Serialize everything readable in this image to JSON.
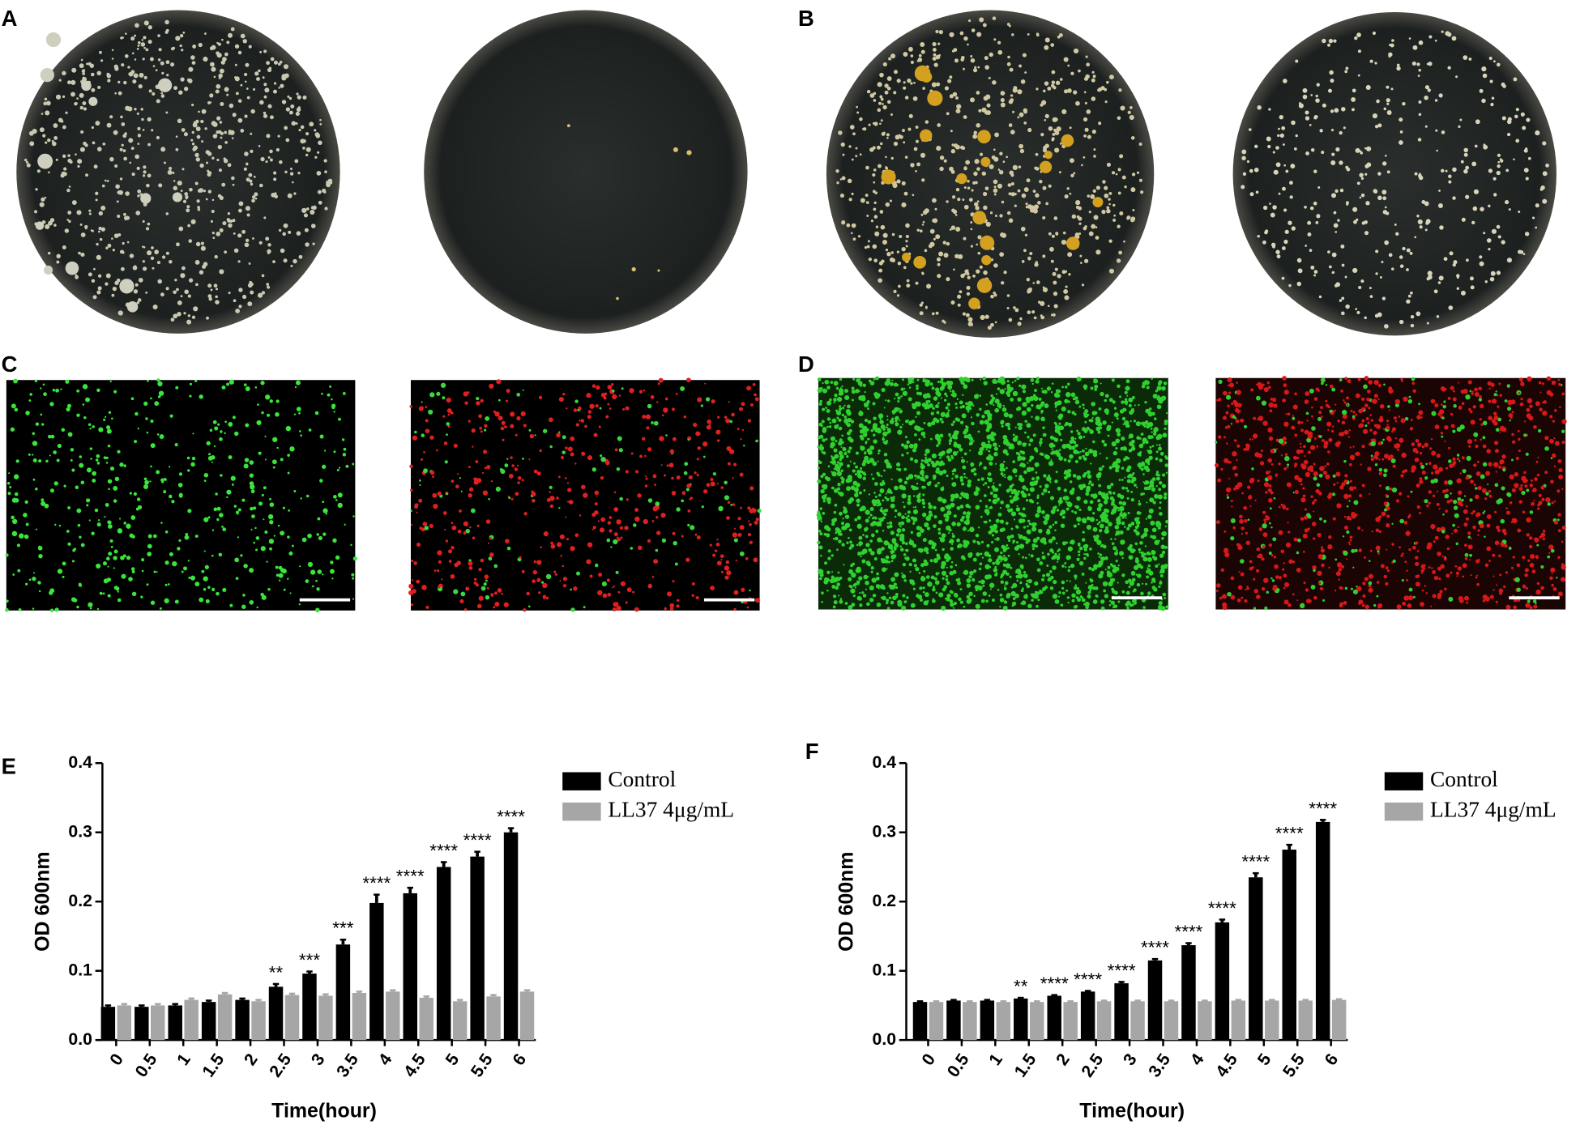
{
  "photo_panels": [
    "A",
    "B",
    "C",
    "D"
  ],
  "chart_data": [
    {
      "type": "bar",
      "panel": "E",
      "x_label": "Time(hour)",
      "y_label": "OD 600nm",
      "categories": [
        "0",
        "0.5",
        "1",
        "1.5",
        "2",
        "2.5",
        "3",
        "3.5",
        "4",
        "4.5",
        "5",
        "5.5",
        "6"
      ],
      "series": [
        {
          "name": "Control",
          "color": "#000000",
          "values": [
            0.048,
            0.048,
            0.05,
            0.055,
            0.058,
            0.077,
            0.096,
            0.138,
            0.198,
            0.212,
            0.25,
            0.265,
            0.3
          ],
          "errors": [
            0.002,
            0.002,
            0.002,
            0.002,
            0.002,
            0.004,
            0.003,
            0.007,
            0.012,
            0.008,
            0.007,
            0.007,
            0.006
          ]
        },
        {
          "name": "LL37 4μg/mL",
          "color": "#a6a6a6",
          "values": [
            0.05,
            0.05,
            0.058,
            0.066,
            0.056,
            0.065,
            0.064,
            0.068,
            0.07,
            0.061,
            0.056,
            0.063,
            0.07
          ],
          "errors": [
            0.002,
            0.002,
            0.002,
            0.002,
            0.002,
            0.002,
            0.002,
            0.002,
            0.002,
            0.002,
            0.002,
            0.002,
            0.002
          ]
        }
      ],
      "annotations": [
        null,
        null,
        null,
        null,
        null,
        "**",
        "***",
        "***",
        "****",
        "****",
        "****",
        "****",
        "****"
      ],
      "ylim": [
        0,
        0.4
      ],
      "yticks": [
        {
          "value": 0,
          "label": "0.0"
        },
        0.1,
        0.2,
        0.3,
        0.4
      ]
    },
    {
      "type": "bar",
      "panel": "F",
      "x_label": "Time(hour)",
      "y_label": "OD 600nm",
      "categories": [
        "0",
        "0.5",
        "1",
        "1.5",
        "2",
        "2.5",
        "3",
        "3.5",
        "4",
        "4.5",
        "5",
        "5.5",
        "6"
      ],
      "series": [
        {
          "name": "Control",
          "color": "#000000",
          "values": [
            0.055,
            0.057,
            0.057,
            0.06,
            0.064,
            0.07,
            0.082,
            0.115,
            0.137,
            0.17,
            0.235,
            0.275,
            0.315
          ],
          "errors": [
            0.001,
            0.001,
            0.001,
            0.001,
            0.001,
            0.001,
            0.002,
            0.002,
            0.003,
            0.004,
            0.006,
            0.007,
            0.003
          ]
        },
        {
          "name": "LL37 4μg/mL",
          "color": "#a6a6a6",
          "values": [
            0.055,
            0.055,
            0.055,
            0.055,
            0.055,
            0.056,
            0.056,
            0.056,
            0.056,
            0.057,
            0.057,
            0.057,
            0.058
          ],
          "errors": [
            0.001,
            0.001,
            0.001,
            0.001,
            0.001,
            0.001,
            0.001,
            0.001,
            0.001,
            0.001,
            0.001,
            0.001,
            0.001
          ]
        }
      ],
      "annotations": [
        null,
        null,
        null,
        "**",
        "****",
        "****",
        "****",
        "****",
        "****",
        "****",
        "****",
        "****",
        "****"
      ],
      "ylim": [
        0,
        0.4
      ],
      "yticks": [
        {
          "value": 0,
          "label": "0.0"
        },
        0.1,
        0.2,
        0.3,
        0.4
      ]
    }
  ]
}
